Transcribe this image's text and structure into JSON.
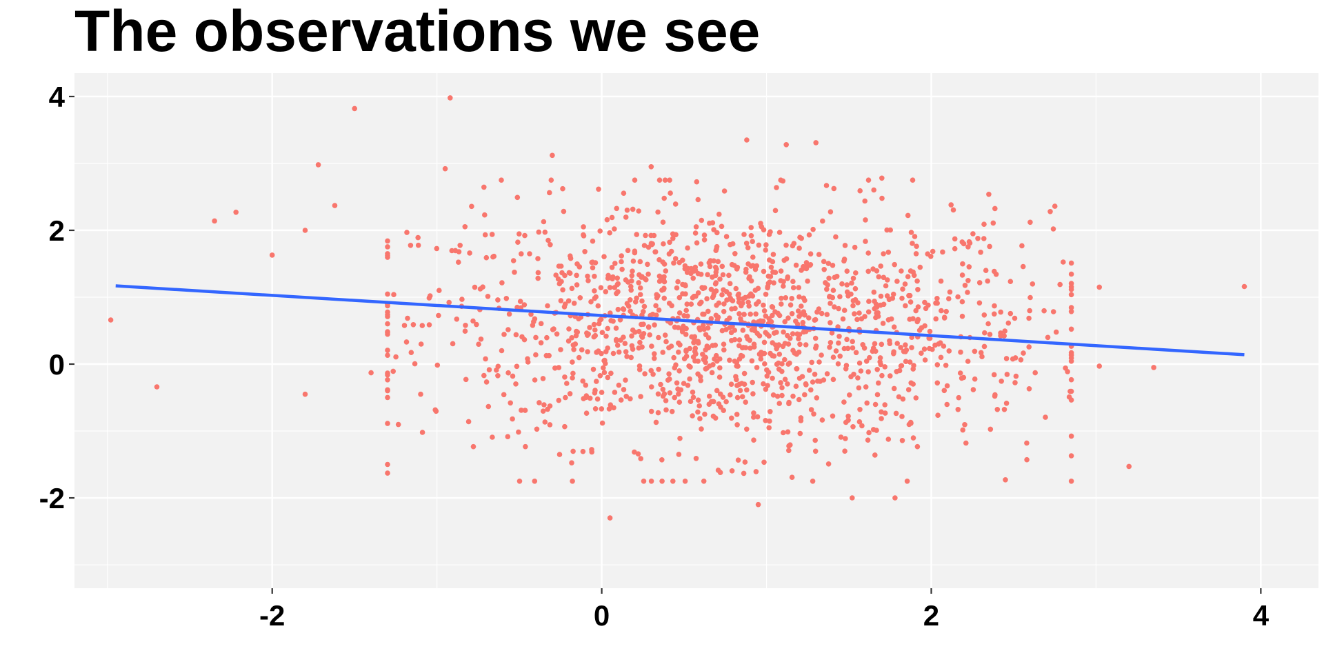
{
  "chart_data": {
    "type": "scatter",
    "title": "The observations we see",
    "xlabel": "",
    "ylabel": "",
    "xlim": [
      -3.2,
      4.35
    ],
    "ylim": [
      -3.35,
      4.35
    ],
    "x_ticks": [
      -2,
      0,
      2,
      4
    ],
    "x_tick_labels": [
      "-2",
      "0",
      "2",
      "4"
    ],
    "y_ticks": [
      -2,
      0,
      2,
      4
    ],
    "y_tick_labels": [
      "-2",
      "0",
      "2",
      "4"
    ],
    "grid": true,
    "legend": "none",
    "n_points": 1500,
    "outlier_points": [
      {
        "x": -2.98,
        "y": 0.66
      },
      {
        "x": -2.7,
        "y": -0.34
      },
      {
        "x": -2.35,
        "y": 2.14
      },
      {
        "x": -2.22,
        "y": 2.27
      },
      {
        "x": -2.0,
        "y": 1.63
      },
      {
        "x": -1.8,
        "y": 2.0
      },
      {
        "x": -1.8,
        "y": -0.45
      },
      {
        "x": -1.72,
        "y": 2.98
      },
      {
        "x": -1.62,
        "y": 2.37
      },
      {
        "x": -1.5,
        "y": 3.82
      },
      {
        "x": -1.4,
        "y": -0.13
      },
      {
        "x": -1.3,
        "y": -1.5
      },
      {
        "x": -0.92,
        "y": 3.98
      },
      {
        "x": -0.95,
        "y": 2.92
      },
      {
        "x": -0.3,
        "y": 3.12
      },
      {
        "x": 0.3,
        "y": 2.95
      },
      {
        "x": 0.72,
        "y": -1.62
      },
      {
        "x": 0.88,
        "y": 3.35
      },
      {
        "x": 0.95,
        "y": -2.1
      },
      {
        "x": 0.05,
        "y": -2.3
      },
      {
        "x": 1.12,
        "y": 3.28
      },
      {
        "x": 1.3,
        "y": 3.31
      },
      {
        "x": 1.52,
        "y": -2.0
      },
      {
        "x": 1.78,
        "y": -2.0
      },
      {
        "x": 1.7,
        "y": 2.78
      },
      {
        "x": 2.12,
        "y": 2.38
      },
      {
        "x": 2.75,
        "y": 2.36
      },
      {
        "x": 2.6,
        "y": 2.12
      },
      {
        "x": 2.45,
        "y": -1.73
      },
      {
        "x": 2.58,
        "y": -1.43
      },
      {
        "x": 3.02,
        "y": 1.15
      },
      {
        "x": 3.02,
        "y": -0.03
      },
      {
        "x": 3.2,
        "y": -1.53
      },
      {
        "x": 3.35,
        "y": -0.05
      },
      {
        "x": 3.9,
        "y": 1.16
      }
    ],
    "series": [
      {
        "type": "scatter",
        "color": "#F8766D",
        "center": {
          "x": 0.8,
          "y": 0.55
        },
        "spread": {
          "x": 0.95,
          "y": 0.9
        }
      },
      {
        "type": "line",
        "color": "#3366FF",
        "x": [
          -2.95,
          3.9
        ],
        "y": [
          1.17,
          0.14
        ]
      }
    ],
    "colors": {
      "panel_background": "#F2F2F2",
      "grid": "#FFFFFF",
      "points": "#F8766D",
      "fit_line": "#3366FF"
    }
  }
}
